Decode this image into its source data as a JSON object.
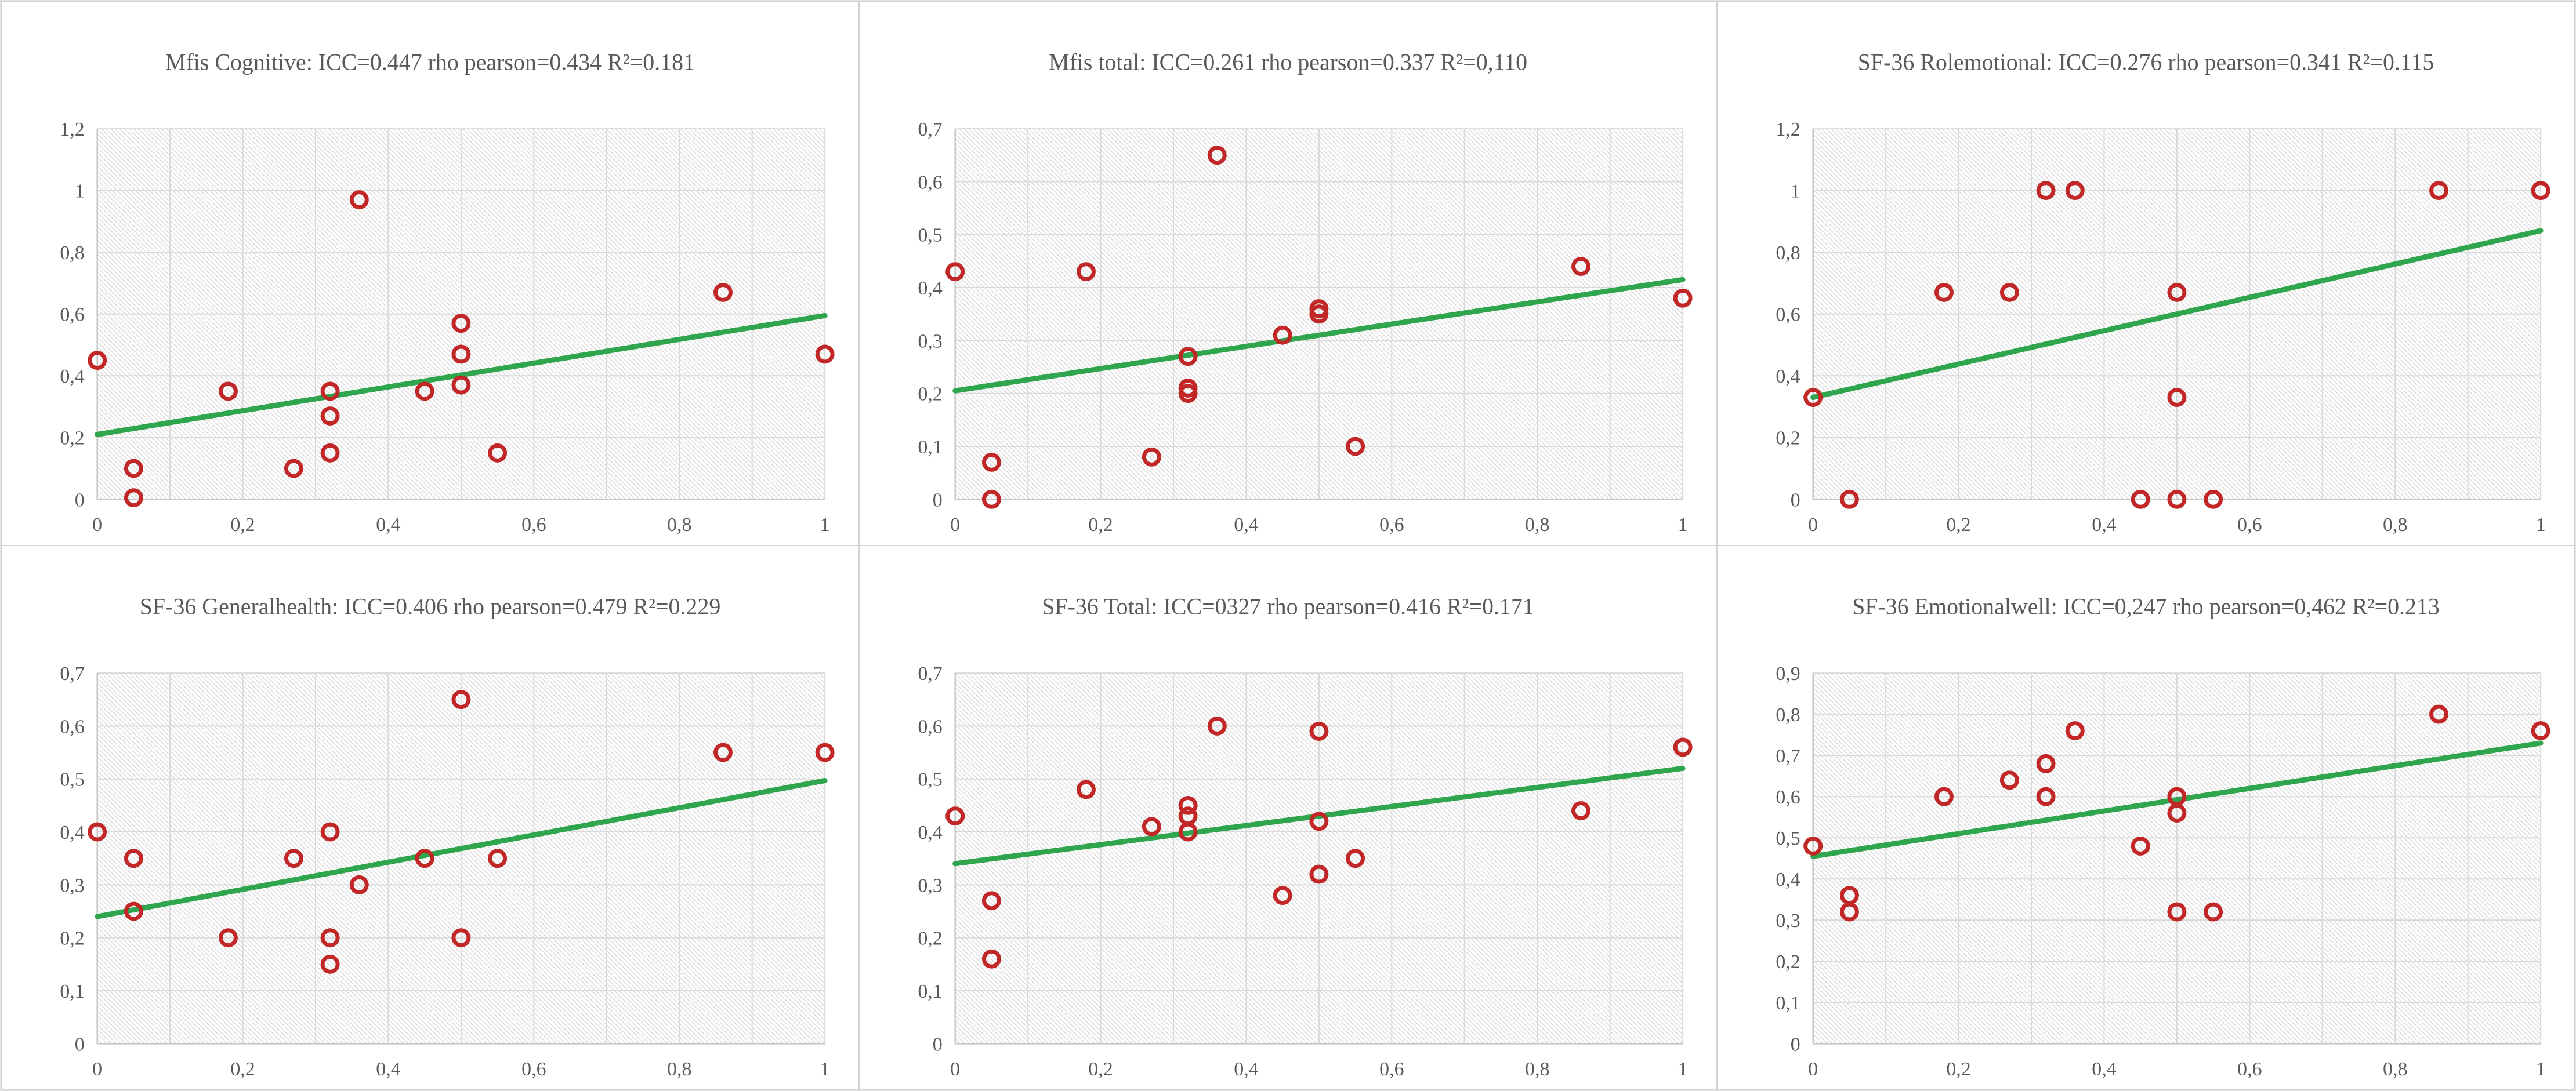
{
  "colors": {
    "marker_red": "#c22727",
    "trend_green": "#2fa54e",
    "gridline": "#d9d9d9",
    "axis_line": "#c6c6c6",
    "hatch": "#dcdcdc",
    "text_gray": "#595959",
    "panel_border": "#d4d4d4"
  },
  "chart_data": [
    {
      "type": "scatter",
      "title": "Mfis Cognitive:  ICC=0.447 rho pearson=0.434 R²=0.181",
      "xlim": [
        0,
        1
      ],
      "ylim": [
        0,
        1.2
      ],
      "ytick_step": 0.2,
      "xtick_step": 0.2,
      "xticks": [
        "0",
        "0,2",
        "0,4",
        "0,6",
        "0,8",
        "1"
      ],
      "yticks": [
        "0",
        "0,2",
        "0,4",
        "0,6",
        "0,8",
        "1",
        "1,2"
      ],
      "points": [
        [
          0,
          0.45
        ],
        [
          0.05,
          0.1
        ],
        [
          0.05,
          0.005
        ],
        [
          0.18,
          0.35
        ],
        [
          0.27,
          0.1
        ],
        [
          0.32,
          0.35
        ],
        [
          0.32,
          0.27
        ],
        [
          0.32,
          0.15
        ],
        [
          0.36,
          0.97
        ],
        [
          0.45,
          0.35
        ],
        [
          0.5,
          0.57
        ],
        [
          0.5,
          0.47
        ],
        [
          0.5,
          0.37
        ],
        [
          0.55,
          0.15
        ],
        [
          0.86,
          0.67
        ],
        [
          1,
          0.47
        ]
      ],
      "trend_line": {
        "start": [
          0,
          0.21
        ],
        "end": [
          1,
          0.595
        ]
      }
    },
    {
      "type": "scatter",
      "title": "Mfis total:  ICC=0.261 rho pearson=0.337 R²=0,110",
      "xlim": [
        0,
        1
      ],
      "ylim": [
        0,
        0.7
      ],
      "ytick_step": 0.1,
      "xtick_step": 0.2,
      "xticks": [
        "0",
        "0,2",
        "0,4",
        "0,6",
        "0,8",
        "1"
      ],
      "yticks": [
        "0",
        "0,1",
        "0,2",
        "0,3",
        "0,4",
        "0,5",
        "0,6",
        "0,7"
      ],
      "points": [
        [
          0,
          0.43
        ],
        [
          0.05,
          0.07
        ],
        [
          0.05,
          0.0
        ],
        [
          0.18,
          0.43
        ],
        [
          0.27,
          0.08
        ],
        [
          0.32,
          0.27
        ],
        [
          0.32,
          0.21
        ],
        [
          0.32,
          0.2
        ],
        [
          0.36,
          0.65
        ],
        [
          0.45,
          0.31
        ],
        [
          0.5,
          0.36
        ],
        [
          0.5,
          0.35
        ],
        [
          0.55,
          0.1
        ],
        [
          0.86,
          0.44
        ],
        [
          1,
          0.38
        ]
      ],
      "trend_line": {
        "start": [
          0,
          0.205
        ],
        "end": [
          1,
          0.415
        ]
      }
    },
    {
      "type": "scatter",
      "title": "SF-36 Rolemotional:  ICC=0.276 rho pearson=0.341 R²=0.115",
      "xlim": [
        0,
        1
      ],
      "ylim": [
        0,
        1.2
      ],
      "ytick_step": 0.2,
      "xtick_step": 0.2,
      "xticks": [
        "0",
        "0,2",
        "0,4",
        "0,6",
        "0,8",
        "1"
      ],
      "yticks": [
        "0",
        "0,2",
        "0,4",
        "0,6",
        "0,8",
        "1",
        "1,2"
      ],
      "points": [
        [
          0,
          0.33
        ],
        [
          0.05,
          0.0
        ],
        [
          0.18,
          0.67
        ],
        [
          0.27,
          0.67
        ],
        [
          0.32,
          1.0
        ],
        [
          0.36,
          1.0
        ],
        [
          0.45,
          0.0
        ],
        [
          0.5,
          0.67
        ],
        [
          0.5,
          0.33
        ],
        [
          0.5,
          0.0
        ],
        [
          0.55,
          0.0
        ],
        [
          0.86,
          1.0
        ],
        [
          1,
          1.0
        ]
      ],
      "trend_line": {
        "start": [
          0,
          0.33
        ],
        "end": [
          1,
          0.87
        ]
      }
    },
    {
      "type": "scatter",
      "title": "SF-36 Generalhealth:  ICC=0.406 rho pearson=0.479 R²=0.229",
      "xlim": [
        0,
        1
      ],
      "ylim": [
        0,
        0.7
      ],
      "ytick_step": 0.1,
      "xtick_step": 0.2,
      "xticks": [
        "0",
        "0,2",
        "0,4",
        "0,6",
        "0,8",
        "1"
      ],
      "yticks": [
        "0",
        "0,1",
        "0,2",
        "0,3",
        "0,4",
        "0,5",
        "0,6",
        "0,7"
      ],
      "points": [
        [
          0,
          0.4
        ],
        [
          0.05,
          0.35
        ],
        [
          0.05,
          0.25
        ],
        [
          0.18,
          0.2
        ],
        [
          0.27,
          0.35
        ],
        [
          0.32,
          0.4
        ],
        [
          0.32,
          0.2
        ],
        [
          0.32,
          0.15
        ],
        [
          0.36,
          0.3
        ],
        [
          0.45,
          0.35
        ],
        [
          0.5,
          0.65
        ],
        [
          0.5,
          0.2
        ],
        [
          0.55,
          0.35
        ],
        [
          0.86,
          0.55
        ],
        [
          1,
          0.55
        ]
      ],
      "trend_line": {
        "start": [
          0,
          0.24
        ],
        "end": [
          1,
          0.497
        ]
      }
    },
    {
      "type": "scatter",
      "title": "SF-36 Total:  ICC=0327 rho pearson=0.416 R²=0.171",
      "xlim": [
        0,
        1
      ],
      "ylim": [
        0,
        0.7
      ],
      "ytick_step": 0.1,
      "xtick_step": 0.2,
      "xticks": [
        "0",
        "0,2",
        "0,4",
        "0,6",
        "0,8",
        "1"
      ],
      "yticks": [
        "0",
        "0,1",
        "0,2",
        "0,3",
        "0,4",
        "0,5",
        "0,6",
        "0,7"
      ],
      "points": [
        [
          0,
          0.43
        ],
        [
          0.05,
          0.27
        ],
        [
          0.05,
          0.16
        ],
        [
          0.18,
          0.48
        ],
        [
          0.27,
          0.41
        ],
        [
          0.32,
          0.45
        ],
        [
          0.32,
          0.43
        ],
        [
          0.32,
          0.4
        ],
        [
          0.36,
          0.6
        ],
        [
          0.45,
          0.28
        ],
        [
          0.5,
          0.59
        ],
        [
          0.5,
          0.42
        ],
        [
          0.5,
          0.32
        ],
        [
          0.55,
          0.35
        ],
        [
          0.86,
          0.44
        ],
        [
          1,
          0.56
        ]
      ],
      "trend_line": {
        "start": [
          0,
          0.34
        ],
        "end": [
          1,
          0.52
        ]
      }
    },
    {
      "type": "scatter",
      "title": "SF-36 Emotionalwell:  ICC=0,247 rho pearson=0,462 R²=0.213",
      "xlim": [
        0,
        1
      ],
      "ylim": [
        0,
        0.9
      ],
      "ytick_step": 0.1,
      "xtick_step": 0.2,
      "xticks": [
        "0",
        "0,2",
        "0,4",
        "0,6",
        "0,8",
        "1"
      ],
      "yticks": [
        "0",
        "0,1",
        "0,2",
        "0,3",
        "0,4",
        "0,5",
        "0,6",
        "0,7",
        "0,8",
        "0,9"
      ],
      "points": [
        [
          0,
          0.48
        ],
        [
          0.05,
          0.36
        ],
        [
          0.05,
          0.32
        ],
        [
          0.18,
          0.6
        ],
        [
          0.27,
          0.64
        ],
        [
          0.32,
          0.68
        ],
        [
          0.32,
          0.6
        ],
        [
          0.36,
          0.76
        ],
        [
          0.45,
          0.48
        ],
        [
          0.5,
          0.6
        ],
        [
          0.5,
          0.56
        ],
        [
          0.5,
          0.32
        ],
        [
          0.55,
          0.32
        ],
        [
          0.86,
          0.8
        ],
        [
          1,
          0.76
        ]
      ],
      "trend_line": {
        "start": [
          0,
          0.455
        ],
        "end": [
          1,
          0.73
        ]
      }
    }
  ]
}
